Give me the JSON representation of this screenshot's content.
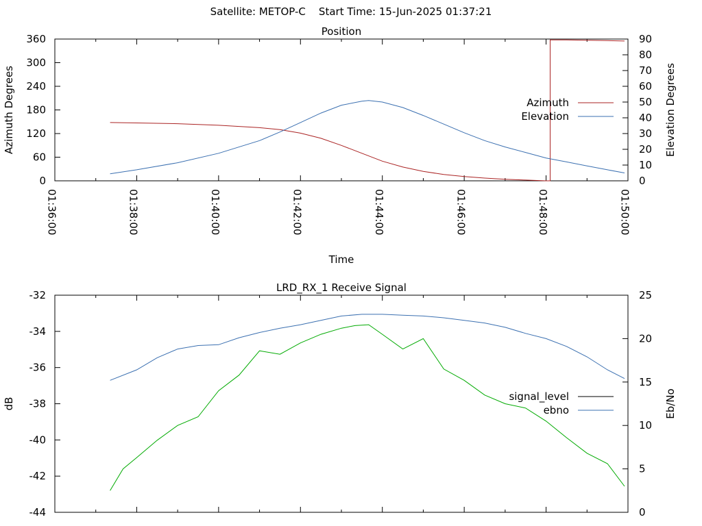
{
  "header": {
    "title": "Satellite: METOP-C    Start Time: 15-Jun-2025 01:37:21"
  },
  "chart_data": [
    {
      "type": "line",
      "title": "Position",
      "xlabel": "Time",
      "ylabel": "Azimuth Degrees",
      "y2label": "Elevation Degrees",
      "xlim": [
        "01:36:00",
        "01:50:00"
      ],
      "ylim": [
        0,
        360
      ],
      "y2lim": [
        0,
        90
      ],
      "x_ticks": [
        "01:36:00",
        "01:38:00",
        "01:40:00",
        "01:42:00",
        "01:44:00",
        "01:46:00",
        "01:48:00",
        "01:50:00"
      ],
      "y_ticks": [
        "0",
        "60",
        "120",
        "180",
        "240",
        "300",
        "360"
      ],
      "y2_ticks": [
        "0",
        "10",
        "20",
        "30",
        "40",
        "50",
        "60",
        "70",
        "80",
        "90"
      ],
      "legend_position": "right",
      "series": [
        {
          "name": "Azimuth",
          "color": "#aa2222",
          "axis": "y",
          "x": [
            "01:37:21",
            "01:38:00",
            "01:39:00",
            "01:40:00",
            "01:41:00",
            "01:41:30",
            "01:42:00",
            "01:42:30",
            "01:43:00",
            "01:43:30",
            "01:44:00",
            "01:44:30",
            "01:45:00",
            "01:45:30",
            "01:46:00",
            "01:46:30",
            "01:47:00",
            "01:47:30",
            "01:48:00",
            "01:48:06",
            "01:48:06",
            "01:48:30",
            "01:49:00",
            "01:49:30",
            "01:49:55"
          ],
          "values": [
            148,
            147,
            145,
            141,
            135,
            130,
            121,
            108,
            90,
            70,
            50,
            35,
            24,
            16,
            11,
            7,
            4,
            2,
            0,
            0,
            358,
            358,
            357,
            356,
            355
          ]
        },
        {
          "name": "Elevation",
          "color": "#3a6fb0",
          "axis": "y2",
          "x": [
            "01:37:21",
            "01:38:00",
            "01:39:00",
            "01:40:00",
            "01:41:00",
            "01:41:30",
            "01:42:00",
            "01:42:30",
            "01:43:00",
            "01:43:30",
            "01:43:40",
            "01:44:00",
            "01:44:30",
            "01:45:00",
            "01:45:30",
            "01:46:00",
            "01:46:30",
            "01:47:00",
            "01:47:30",
            "01:48:00",
            "01:48:30",
            "01:49:00",
            "01:49:30",
            "01:49:55"
          ],
          "values": [
            4.5,
            7,
            11.5,
            17.5,
            25.5,
            31,
            37,
            43,
            48,
            50.5,
            51,
            50,
            46.5,
            41.5,
            36,
            30.5,
            25.5,
            21.5,
            18,
            14.5,
            12,
            9.5,
            7,
            5
          ]
        }
      ]
    },
    {
      "type": "line",
      "title": "LRD_RX_1 Receive Signal",
      "ylabel": "dB",
      "y2label": "Eb/No",
      "xlim": [
        "01:36:00",
        "01:50:00"
      ],
      "ylim": [
        -44,
        -32
      ],
      "y2lim": [
        0,
        25
      ],
      "y_ticks": [
        "-32",
        "-34",
        "-36",
        "-38",
        "-40",
        "-42",
        "-44"
      ],
      "y2_ticks": [
        "0",
        "5",
        "10",
        "15",
        "20",
        "25"
      ],
      "legend_position": "right",
      "series": [
        {
          "name": "signal_level",
          "color": "#000000",
          "axis": "y",
          "x": [],
          "values": []
        },
        {
          "name": "ebno",
          "color": "#3a6fb0",
          "axis": "y2",
          "x": [
            "01:37:21",
            "01:38:00",
            "01:38:30",
            "01:39:00",
            "01:39:30",
            "01:40:00",
            "01:40:30",
            "01:41:00",
            "01:41:30",
            "01:42:00",
            "01:42:30",
            "01:43:00",
            "01:43:30",
            "01:44:00",
            "01:44:30",
            "01:45:00",
            "01:45:30",
            "01:46:00",
            "01:46:30",
            "01:47:00",
            "01:47:30",
            "01:48:00",
            "01:48:30",
            "01:49:00",
            "01:49:30",
            "01:49:55"
          ],
          "values": [
            15.2,
            16.4,
            17.8,
            18.8,
            19.2,
            19.3,
            20.1,
            20.7,
            21.2,
            21.6,
            22.1,
            22.6,
            22.8,
            22.8,
            22.7,
            22.6,
            22.4,
            22.1,
            21.8,
            21.3,
            20.6,
            20.0,
            19.1,
            17.9,
            16.4,
            15.4
          ]
        },
        {
          "name": "",
          "color": "#00aa00",
          "axis": "y2",
          "x": [
            "01:37:21",
            "01:37:40",
            "01:38:00",
            "01:38:30",
            "01:39:00",
            "01:39:30",
            "01:40:00",
            "01:40:30",
            "01:41:00",
            "01:41:30",
            "01:42:00",
            "01:42:30",
            "01:43:00",
            "01:43:20",
            "01:43:40",
            "01:44:00",
            "01:44:30",
            "01:45:00",
            "01:45:30",
            "01:46:00",
            "01:46:30",
            "01:47:00",
            "01:47:30",
            "01:48:00",
            "01:48:30",
            "01:49:00",
            "01:49:30",
            "01:49:55"
          ],
          "values": [
            2.5,
            5.0,
            6.3,
            8.3,
            10.0,
            11.0,
            14.0,
            15.8,
            18.6,
            18.2,
            19.5,
            20.5,
            21.2,
            21.5,
            21.6,
            20.5,
            18.8,
            20.0,
            16.5,
            15.2,
            13.5,
            12.5,
            12.0,
            10.5,
            8.6,
            6.8,
            5.6,
            3.0
          ]
        }
      ]
    }
  ]
}
